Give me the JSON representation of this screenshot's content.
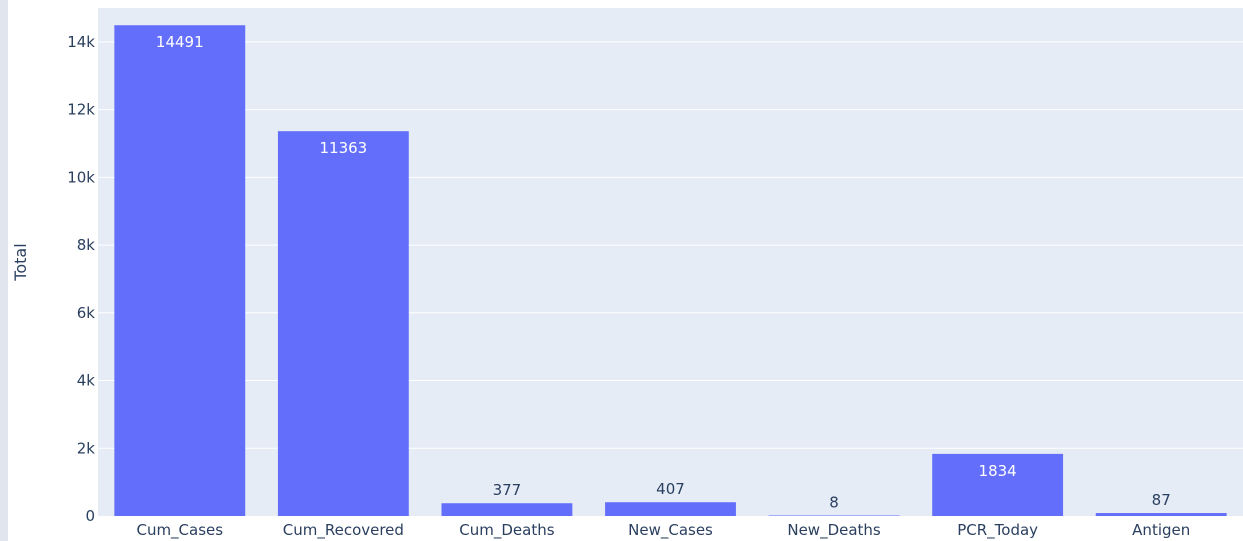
{
  "chart_data": {
    "type": "bar",
    "categories": [
      "Cum_Cases",
      "Cum_Recovered",
      "Cum_Deaths",
      "New_Cases",
      "New_Deaths",
      "PCR_Today",
      "Antigen"
    ],
    "values": [
      14491,
      11363,
      377,
      407,
      8,
      1834,
      87
    ],
    "data_labels": [
      "14491",
      "11363",
      "377",
      "407",
      "8",
      "1834",
      "87"
    ],
    "title": "",
    "xlabel": "",
    "ylabel": "Total",
    "ylim": [
      0,
      15000
    ],
    "yticks": [
      0,
      2000,
      4000,
      6000,
      8000,
      10000,
      12000,
      14000
    ],
    "ytick_labels": [
      "0",
      "2k",
      "4k",
      "6k",
      "8k",
      "10k",
      "12k",
      "14k"
    ],
    "grid": true,
    "legend": "none"
  },
  "colors": {
    "bar": "#636efa",
    "plot_background": "#e5ecf6",
    "gridline": "#ffffff",
    "text": "#2a3f5f",
    "label_inside": "#ffffff",
    "label_outside": "#2a3f5f"
  }
}
